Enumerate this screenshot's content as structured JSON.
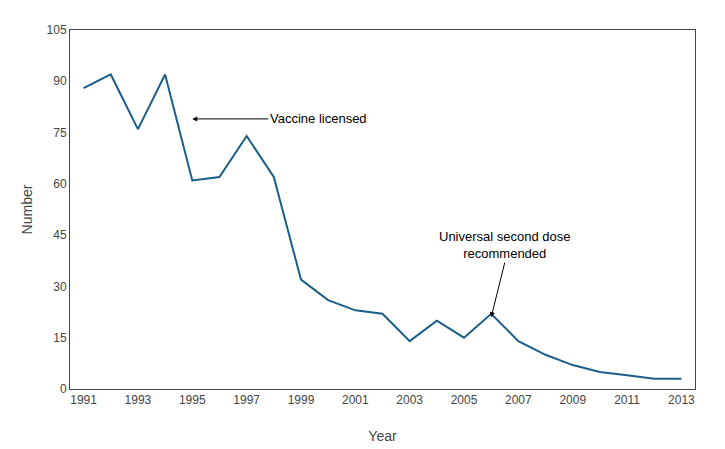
{
  "chart_data": {
    "type": "line",
    "x": [
      1991,
      1992,
      1993,
      1994,
      1995,
      1996,
      1997,
      1998,
      1999,
      2000,
      2001,
      2002,
      2003,
      2004,
      2005,
      2006,
      2007,
      2008,
      2009,
      2010,
      2011,
      2012,
      2013
    ],
    "values": [
      88,
      92,
      76,
      92,
      61,
      62,
      74,
      62,
      32,
      26,
      23,
      22,
      14,
      20,
      15,
      22,
      14,
      10,
      7,
      5,
      4,
      3,
      3
    ],
    "color": "#1a5e8a",
    "xlabel": "Year",
    "ylabel": "Number",
    "xlim": [
      1990.5,
      2013.5
    ],
    "xticks": [
      1991,
      1993,
      1995,
      1997,
      1999,
      2001,
      2003,
      2005,
      2007,
      2009,
      2011,
      2013
    ],
    "ylim": [
      0,
      105
    ],
    "yticks": [
      0,
      15,
      30,
      45,
      60,
      75,
      90,
      105
    ],
    "grid": false,
    "annotations": [
      {
        "text": "Vaccine licensed",
        "x": 1995.0,
        "y": 79,
        "text_x": 1997.8,
        "text_y": 79
      },
      {
        "text": "Universal second dose\nrecommended",
        "x": 2006.0,
        "y": 21,
        "text_x": 2006.5,
        "text_y": 37
      }
    ]
  }
}
